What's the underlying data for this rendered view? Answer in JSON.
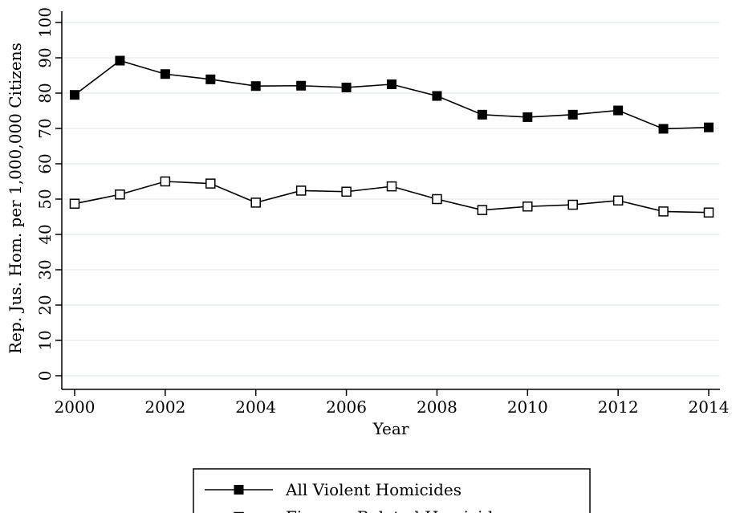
{
  "chart_data": {
    "type": "line",
    "title": "",
    "xlabel": "Year",
    "ylabel": "Rep. Jus. Hom. per 1,000,000 Citizens",
    "xlim": [
      2000,
      2014
    ],
    "ylim": [
      0,
      100
    ],
    "x": [
      2000,
      2001,
      2002,
      2003,
      2004,
      2005,
      2006,
      2007,
      2008,
      2009,
      2010,
      2011,
      2012,
      2013,
      2014
    ],
    "x_ticks": [
      "2000",
      "2002",
      "2004",
      "2006",
      "2008",
      "2010",
      "2012",
      "2014"
    ],
    "y_ticks": [
      "0",
      "10",
      "20",
      "30",
      "40",
      "50",
      "60",
      "70",
      "80",
      "90",
      "100"
    ],
    "grid": "horizontal",
    "legend_position": "bottom",
    "series": [
      {
        "name": "All Violent Homicides",
        "marker": "filled-square",
        "color": "#000000",
        "values": [
          79.5,
          89.2,
          85.4,
          83.9,
          82.0,
          82.1,
          81.6,
          82.5,
          79.2,
          73.9,
          73.2,
          73.9,
          75.1,
          69.9,
          70.3
        ]
      },
      {
        "name": "Firearm-Related Homicide",
        "marker": "hollow-square",
        "color": "#000000",
        "values": [
          48.7,
          51.3,
          55.0,
          54.4,
          49.0,
          52.4,
          52.1,
          53.6,
          50.0,
          46.9,
          47.9,
          48.4,
          49.6,
          46.5,
          46.2
        ]
      }
    ]
  }
}
